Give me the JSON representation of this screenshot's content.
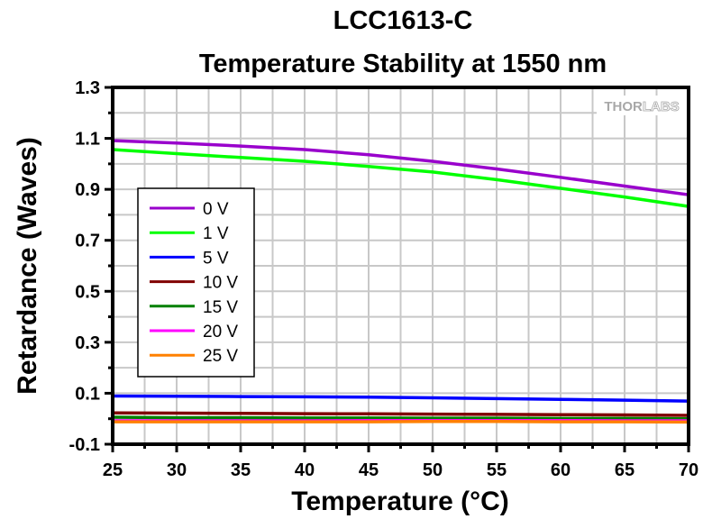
{
  "chart_data": {
    "type": "line",
    "title": "LCC1613-C",
    "subtitle": "Temperature Stability at 1550 nm",
    "xlabel": "Temperature (°C)",
    "ylabel": "Retardance (Waves)",
    "xlim": [
      25,
      70
    ],
    "ylim": [
      -0.1,
      1.3
    ],
    "x_ticks": [
      25,
      30,
      35,
      40,
      45,
      50,
      55,
      60,
      65,
      70
    ],
    "x_tick_labels": [
      "25",
      "30",
      "35",
      "40",
      "45",
      "50",
      "55",
      "60",
      "65",
      "70"
    ],
    "y_ticks": [
      -0.1,
      0.1,
      0.3,
      0.5,
      0.7,
      0.9,
      1.1,
      1.3
    ],
    "y_tick_labels": [
      "-0.1",
      "0.1",
      "0.3",
      "0.5",
      "0.7",
      "0.9",
      "1.1",
      "1.3"
    ],
    "grid": true,
    "legend_position": "center-left",
    "watermark": "THORLABS",
    "x": [
      25,
      30,
      35,
      40,
      45,
      50,
      55,
      60,
      65,
      70
    ],
    "series": [
      {
        "name": "0 V",
        "color": "#9900cc",
        "values": [
          1.091,
          1.082,
          1.07,
          1.056,
          1.036,
          1.01,
          0.98,
          0.947,
          0.913,
          0.879
        ]
      },
      {
        "name": "1 V",
        "color": "#00ff00",
        "values": [
          1.056,
          1.04,
          1.025,
          1.01,
          0.99,
          0.968,
          0.938,
          0.904,
          0.87,
          0.833
        ]
      },
      {
        "name": "5 V",
        "color": "#0000ff",
        "values": [
          0.089,
          0.088,
          0.087,
          0.086,
          0.085,
          0.082,
          0.079,
          0.076,
          0.073,
          0.069
        ]
      },
      {
        "name": "10 V",
        "color": "#800000",
        "values": [
          0.023,
          0.022,
          0.021,
          0.02,
          0.019,
          0.018,
          0.017,
          0.016,
          0.015,
          0.013
        ]
      },
      {
        "name": "15 V",
        "color": "#008000",
        "values": [
          0.006,
          0.004,
          0.004,
          0.003,
          0.003,
          0.002,
          0.002,
          0.001,
          0.001,
          0.0
        ]
      },
      {
        "name": "20 V",
        "color": "#ff00ff",
        "values": [
          -0.008,
          -0.008,
          -0.008,
          -0.008,
          -0.007,
          -0.007,
          -0.007,
          -0.007,
          -0.008,
          -0.008
        ]
      },
      {
        "name": "25 V",
        "color": "#ff8000",
        "values": [
          -0.012,
          -0.012,
          -0.012,
          -0.012,
          -0.012,
          -0.011,
          -0.011,
          -0.012,
          -0.012,
          -0.013
        ]
      }
    ]
  }
}
